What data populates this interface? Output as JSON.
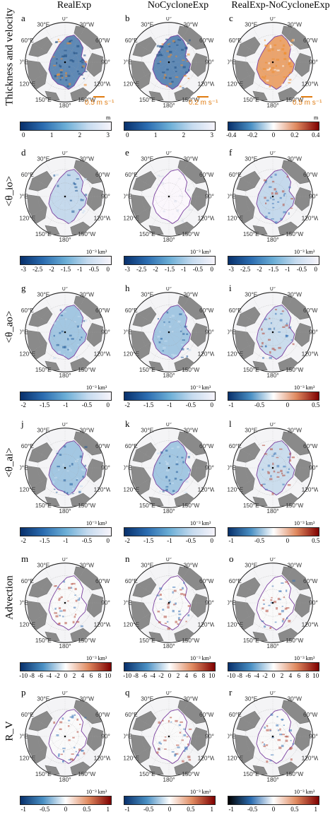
{
  "columns": [
    "RealExp",
    "NoCycloneExp",
    "RealExp-NoCycloneExp"
  ],
  "rows": [
    {
      "label": "Thickness and velocity",
      "letters": [
        "a",
        "b",
        "c"
      ],
      "scales": [
        "0.5 m s⁻¹",
        "0.2 m s⁻¹",
        "0.5 m s⁻¹"
      ],
      "unit": [
        "m",
        "",
        "m"
      ],
      "ticks": [
        [
          "0",
          "1",
          "2",
          "3"
        ],
        [
          "0",
          "1",
          "2",
          "3"
        ],
        [
          "-0.4",
          "-0.2",
          "0",
          "0.2",
          "0.4"
        ]
      ]
    },
    {
      "label": "<θ_io>",
      "letters": [
        "d",
        "e",
        "f"
      ],
      "unit": [
        "10⁻³ km³",
        "10⁻³ km³",
        "10⁻³ km³"
      ],
      "ticks": [
        [
          "-3",
          "-2.5",
          "-2",
          "-1.5",
          "-1",
          "-0.5",
          "0"
        ],
        [
          "-3",
          "-2.5",
          "-2",
          "-1.5",
          "-1",
          "-0.5",
          "0"
        ],
        [
          "-3",
          "-2.5",
          "-2",
          "-1.5",
          "-1",
          "-0.5",
          "0"
        ]
      ]
    },
    {
      "label": "<θ_ao>",
      "letters": [
        "g",
        "h",
        "i"
      ],
      "unit": [
        "10⁻³ km³",
        "10⁻³ km³",
        "10⁻³ km³"
      ],
      "ticks": [
        [
          "-2",
          "-1.5",
          "-1",
          "-0.5",
          "0"
        ],
        [
          "-2",
          "-1.5",
          "-1",
          "-0.5",
          "0"
        ],
        [
          "-1",
          "-0.5",
          "0",
          "0.5"
        ]
      ]
    },
    {
      "label": "<θ_ai>",
      "letters": [
        "j",
        "k",
        "l"
      ],
      "unit": [
        "10⁻³ km³",
        "10⁻³ km³",
        "10⁻³ km³"
      ],
      "ticks": [
        [
          "-2",
          "-1.5",
          "-1",
          "-0.5",
          "0"
        ],
        [
          "-2",
          "-1.5",
          "-1",
          "-0.5",
          "0"
        ],
        [
          "-1",
          "-0.5",
          "0",
          "0.5"
        ]
      ]
    },
    {
      "label": "Advection",
      "letters": [
        "m",
        "n",
        "o"
      ],
      "unit": [
        "10⁻³ km³",
        "10⁻³ km³",
        "10⁻³ km³"
      ],
      "ticks": [
        [
          "-10",
          "-8",
          "-6",
          "-4",
          "-2",
          "0",
          "2",
          "4",
          "6",
          "8",
          "10"
        ],
        [
          "-10",
          "-8",
          "-6",
          "-4",
          "-2",
          "0",
          "2",
          "4",
          "6",
          "8",
          "10"
        ],
        [
          "-10",
          "-8",
          "-6",
          "-4",
          "-2",
          "0",
          "2",
          "4",
          "6",
          "8",
          "10"
        ]
      ]
    },
    {
      "label": "R_V",
      "letters": [
        "p",
        "q",
        "r"
      ],
      "unit": [
        "10⁻³ km³",
        "10⁻³ km³",
        "10⁻³ km³"
      ],
      "ticks": [
        [
          "-1",
          "-0.5",
          "0",
          "0.5",
          "1"
        ],
        [
          "-1",
          "-0.5",
          "0",
          "0.5",
          "1"
        ],
        [
          "-1",
          "-0.5",
          "0",
          "0.5",
          "1"
        ]
      ]
    }
  ],
  "longitudes": [
    "0°",
    "30°W",
    "60°W",
    "90°W",
    "120°W",
    "150°W",
    "180°",
    "150°E",
    "120°E",
    "90°E",
    "60°E",
    "30°E"
  ],
  "colormaps": {
    "blue_white": [
      "#08306b",
      "#2b6cb0",
      "#6baed6",
      "#c6dbef",
      "#f7f4fb"
    ],
    "diverging": [
      "#08306b",
      "#4a90c4",
      "#ffffff",
      "#e08a60",
      "#7f0000"
    ],
    "diverging_black": [
      "#000000",
      "#2b6cb0",
      "#ffffff",
      "#e08a60",
      "#7f0000"
    ]
  }
}
